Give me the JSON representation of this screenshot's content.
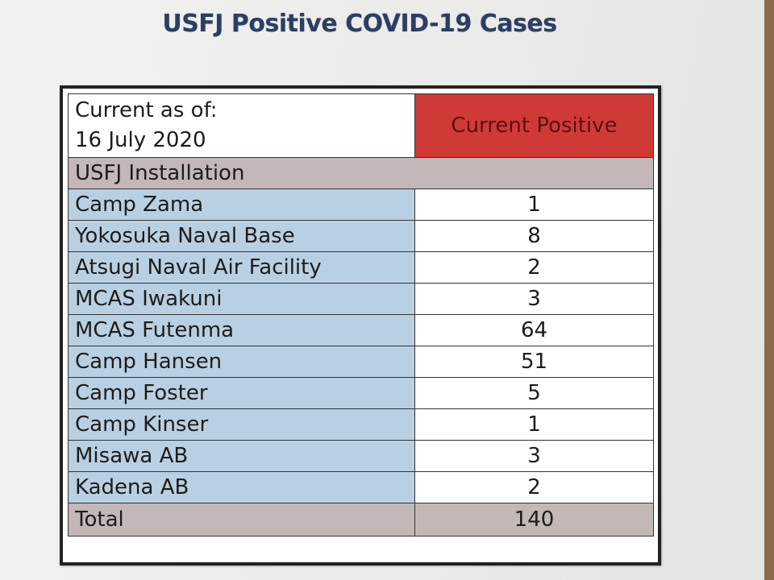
{
  "document": {
    "title": "USFJ Positive COVID-19 Cases"
  },
  "table": {
    "as_of_label": "Current as of:",
    "as_of_date": "16 July 2020",
    "column_header": "Current Positive",
    "installation_header": "USFJ Installation",
    "rows": [
      {
        "name": "Camp Zama",
        "value": "1"
      },
      {
        "name": "Yokosuka Naval Base",
        "value": "8"
      },
      {
        "name": "Atsugi Naval Air Facility",
        "value": "2"
      },
      {
        "name": "MCAS Iwakuni",
        "value": "3"
      },
      {
        "name": "MCAS Futenma",
        "value": "64"
      },
      {
        "name": "Camp Hansen",
        "value": "51"
      },
      {
        "name": "Camp Foster",
        "value": "5"
      },
      {
        "name": "Camp Kinser",
        "value": "1"
      },
      {
        "name": "Misawa AB",
        "value": "3"
      },
      {
        "name": "Kadena AB",
        "value": "2"
      }
    ],
    "total_label": "Total",
    "total_value": "140"
  },
  "colors": {
    "header_red": "#d03a36",
    "installation_blue": "#b9d0e2",
    "section_gray": "#c4b7b7",
    "title_navy": "#2c3e63"
  }
}
